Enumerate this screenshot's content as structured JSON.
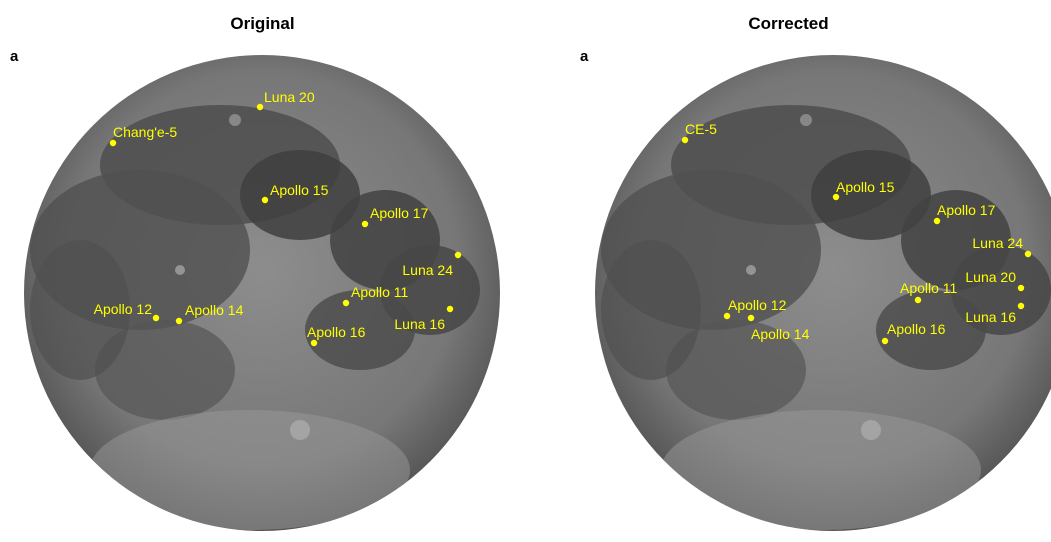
{
  "colors": {
    "marker": "#ffff00",
    "moon_base": "#7a7a7a",
    "maria": "#4a4a4a"
  },
  "panels": [
    {
      "title": "Original",
      "letter": "a",
      "sites": [
        {
          "id": "luna20",
          "label": "Luna 20"
        },
        {
          "id": "change5",
          "label": "Chang'e-5"
        },
        {
          "id": "apollo15",
          "label": "Apollo 15"
        },
        {
          "id": "apollo17",
          "label": "Apollo 17"
        },
        {
          "id": "luna24",
          "label": "Luna 24"
        },
        {
          "id": "apollo11",
          "label": "Apollo 11"
        },
        {
          "id": "luna16",
          "label": "Luna 16"
        },
        {
          "id": "apollo12",
          "label": "Apollo 12"
        },
        {
          "id": "apollo14",
          "label": "Apollo 14"
        },
        {
          "id": "apollo16",
          "label": "Apollo 16"
        }
      ]
    },
    {
      "title": "Corrected",
      "letter": "a",
      "sites": [
        {
          "id": "ce5",
          "label": "CE-5"
        },
        {
          "id": "apollo15",
          "label": "Apollo 15"
        },
        {
          "id": "apollo17",
          "label": "Apollo 17"
        },
        {
          "id": "luna24",
          "label": "Luna 24"
        },
        {
          "id": "luna20",
          "label": "Luna 20"
        },
        {
          "id": "apollo11",
          "label": "Apollo 11"
        },
        {
          "id": "luna16",
          "label": "Luna 16"
        },
        {
          "id": "apollo12",
          "label": "Apollo 12"
        },
        {
          "id": "apollo14",
          "label": "Apollo 14"
        },
        {
          "id": "apollo16",
          "label": "Apollo 16"
        }
      ]
    }
  ]
}
